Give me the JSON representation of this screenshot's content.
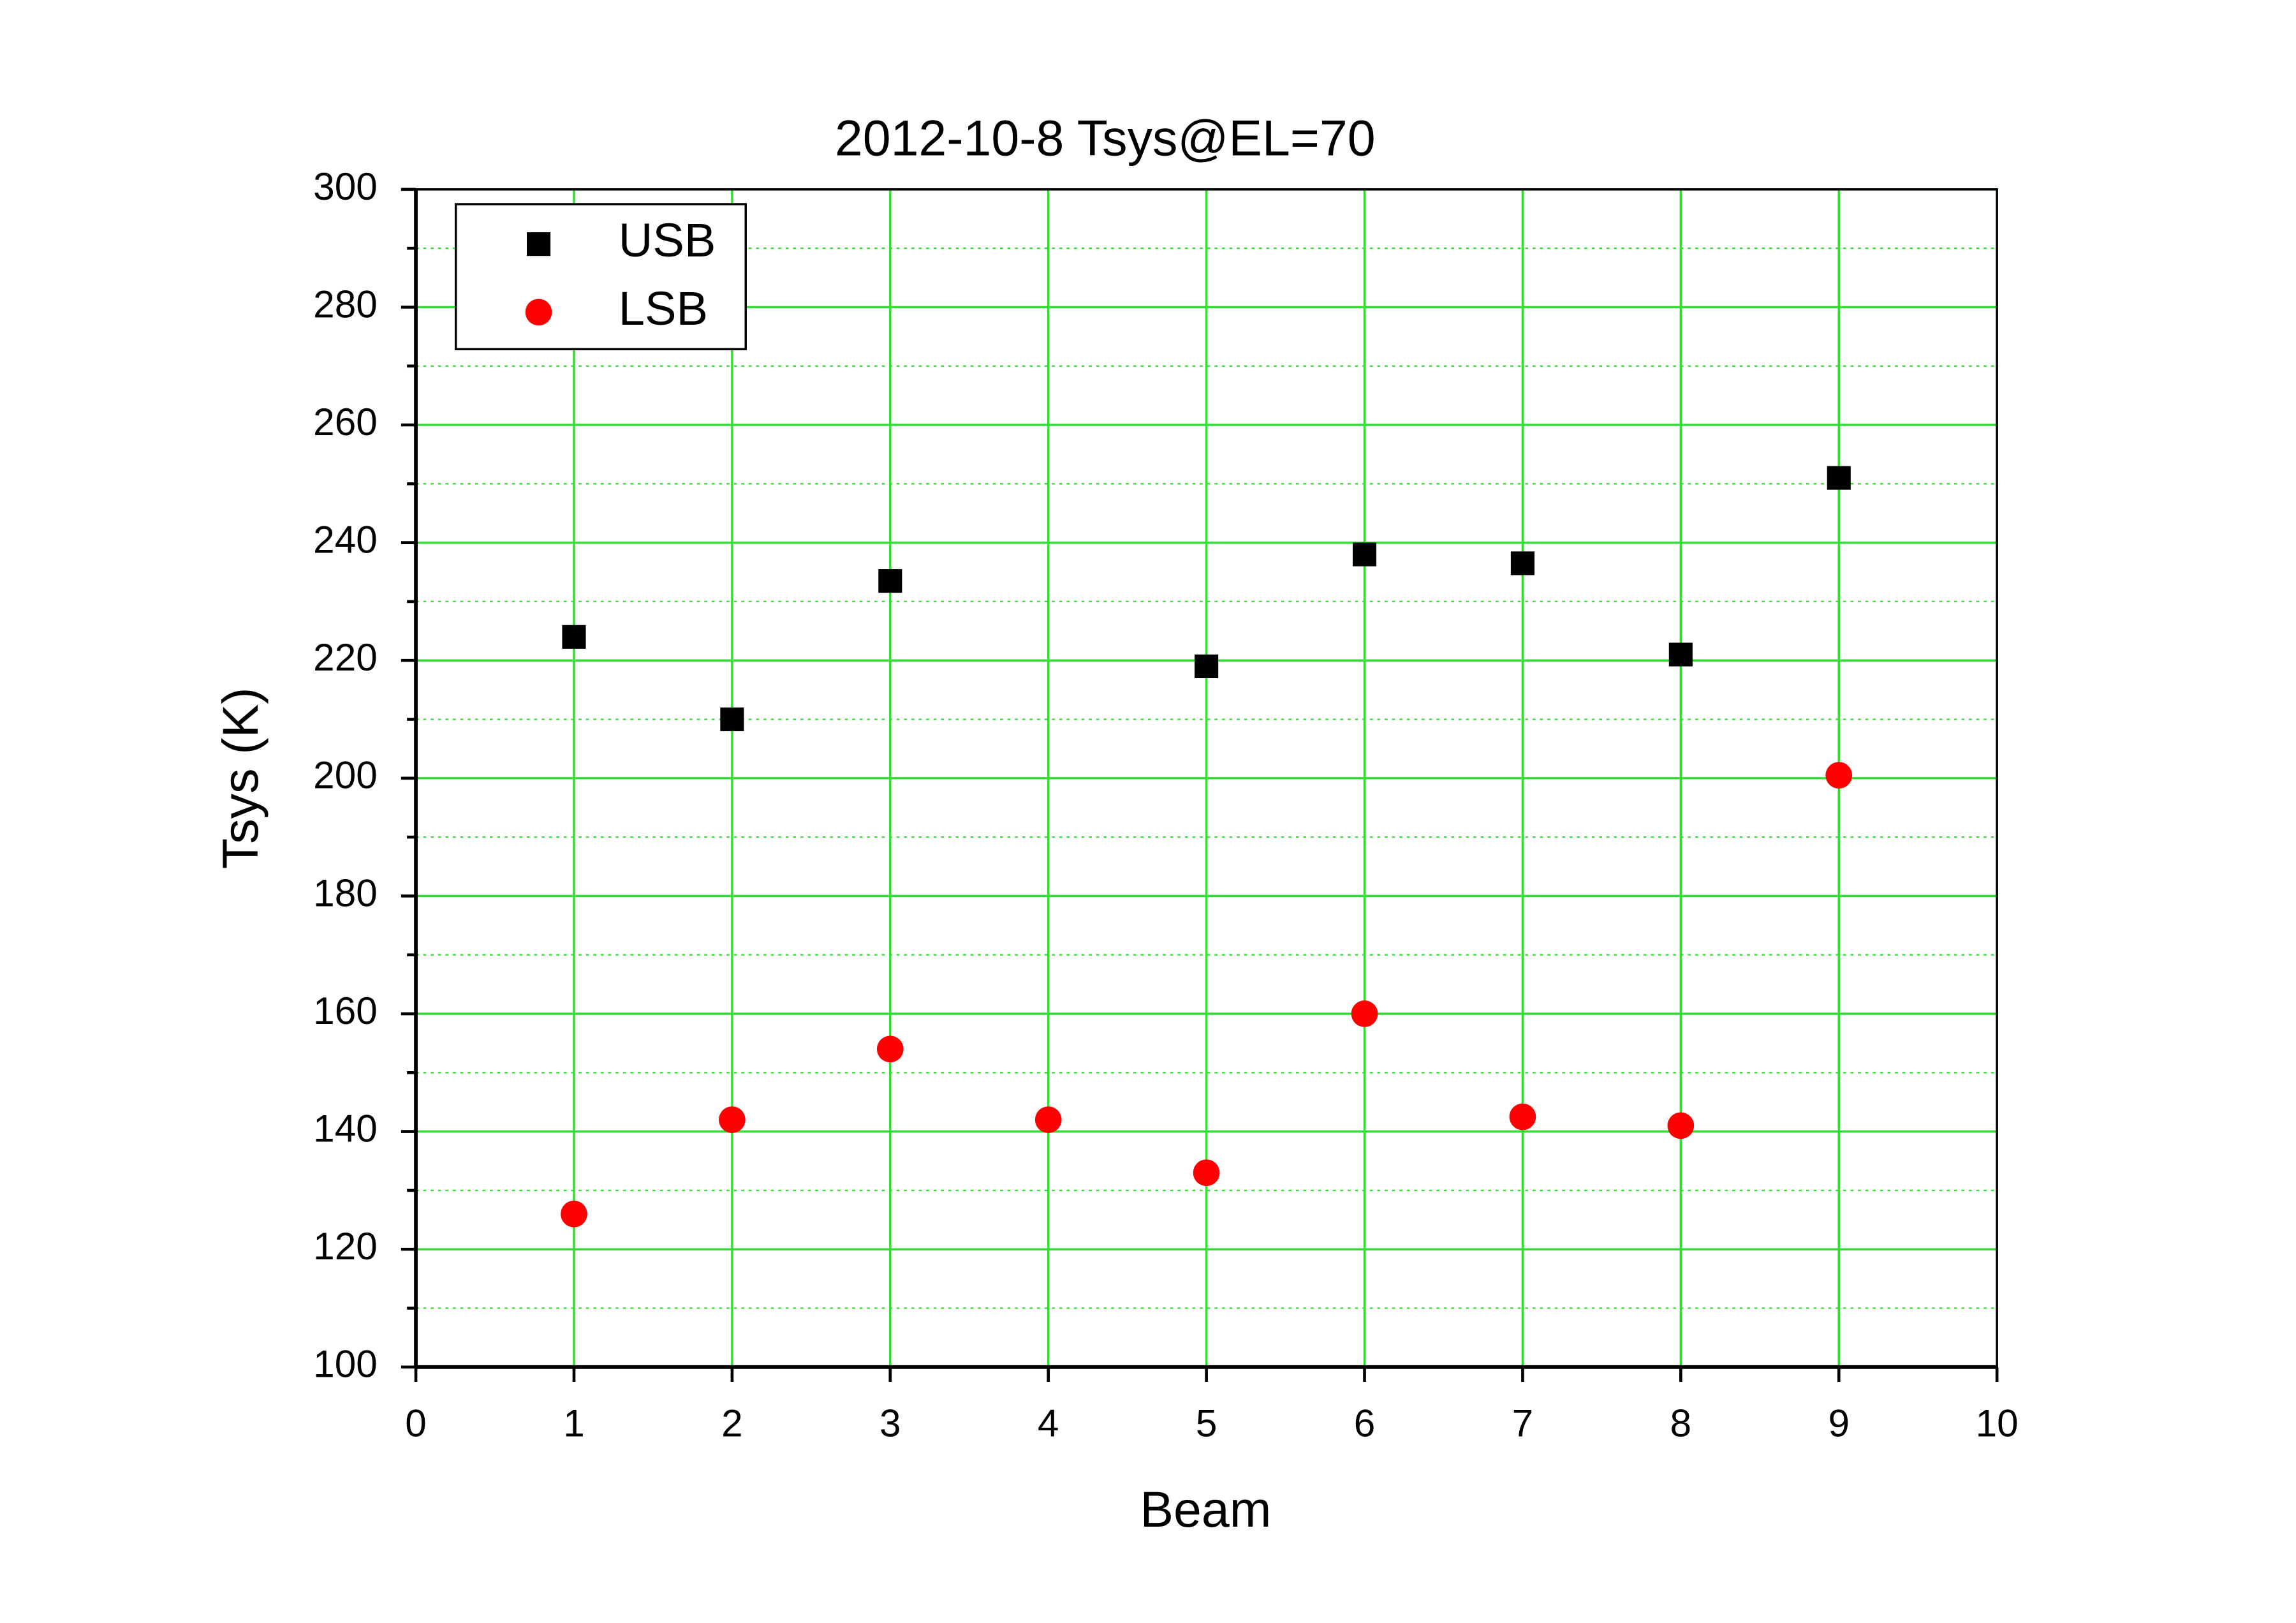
{
  "chart_data": {
    "type": "scatter",
    "title": "2012-10-8 Tsys@EL=70",
    "x_label": "Beam",
    "y_label": "Tsys (K)",
    "x": [
      1,
      2,
      3,
      4,
      5,
      6,
      7,
      8,
      9
    ],
    "series": [
      {
        "name": "USB",
        "color": "#000000",
        "marker": "square",
        "values": [
          224,
          210,
          233.5,
          null,
          219,
          238,
          236.5,
          221,
          251
        ]
      },
      {
        "name": "LSB",
        "color": "#ff0000",
        "marker": "circle",
        "values": [
          126,
          142,
          154,
          142,
          133,
          160,
          142.5,
          141,
          200.5
        ]
      }
    ],
    "xlim": [
      0,
      10
    ],
    "xticks": [
      0,
      1,
      2,
      3,
      4,
      5,
      6,
      7,
      8,
      9,
      10
    ],
    "ylim": [
      100,
      300
    ],
    "yticks": [
      100,
      120,
      140,
      160,
      180,
      200,
      220,
      240,
      260,
      280,
      300
    ],
    "yminorticks": [
      110,
      130,
      150,
      170,
      190,
      210,
      230,
      250,
      270,
      290
    ],
    "grid": true,
    "grid_color": "#33dd33",
    "legend": "top-left"
  }
}
